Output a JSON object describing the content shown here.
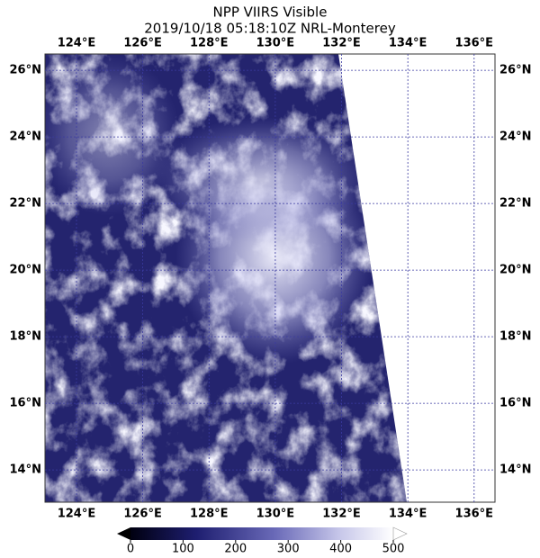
{
  "map": {
    "title": "NPP VIIRS Visible",
    "subtitle": "2019/10/18 05:18:10Z NRL-Monterey",
    "lon_range": [
      123.05,
      136.63
    ],
    "lat_range": [
      13.03,
      26.49
    ],
    "lon_ticks": [
      {
        "value": 124,
        "label": "124°E"
      },
      {
        "value": 126,
        "label": "126°E"
      },
      {
        "value": 128,
        "label": "128°E"
      },
      {
        "value": 130,
        "label": "130°E"
      },
      {
        "value": 132,
        "label": "132°E"
      },
      {
        "value": 134,
        "label": "134°E"
      },
      {
        "value": 136,
        "label": "136°E"
      }
    ],
    "lat_ticks": [
      {
        "value": 14,
        "label": "14°N"
      },
      {
        "value": 16,
        "label": "16°N"
      },
      {
        "value": 18,
        "label": "18°N"
      },
      {
        "value": 20,
        "label": "20°N"
      },
      {
        "value": 22,
        "label": "22°N"
      },
      {
        "value": 24,
        "label": "24°N"
      },
      {
        "value": 26,
        "label": "26°N"
      }
    ],
    "colorbar": {
      "lim": [
        0,
        500
      ],
      "ticks": [
        0,
        100,
        200,
        300,
        400,
        500
      ]
    }
  }
}
